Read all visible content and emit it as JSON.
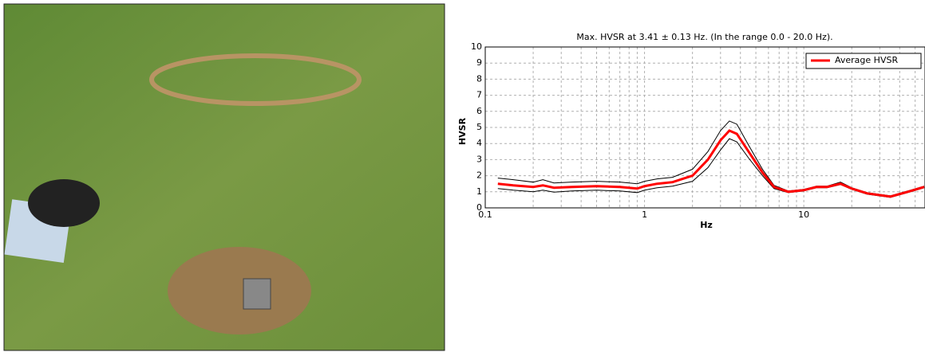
{
  "chart_data": {
    "type": "line",
    "title": "Max. HVSR at 3.41 ± 0.13 Hz. (In the range 0.0 - 20.0 Hz).",
    "x_label": "Hz",
    "y_label": "HVSR",
    "x": [
      0.12,
      0.15,
      0.2,
      0.23,
      0.27,
      0.35,
      0.5,
      0.7,
      0.9,
      1.0,
      1.2,
      1.5,
      2,
      2.5,
      3,
      3.41,
      3.8,
      4.5,
      5.5,
      6.5,
      8,
      10,
      12,
      14,
      17,
      20,
      25,
      35,
      45,
      57
    ],
    "series": [
      {
        "color": "#000000",
        "values": [
          1.85,
          1.75,
          1.6,
          1.75,
          1.55,
          1.6,
          1.65,
          1.6,
          1.5,
          1.65,
          1.8,
          1.9,
          2.4,
          3.5,
          4.8,
          5.4,
          5.2,
          3.9,
          2.4,
          1.4,
          1.05,
          1.15,
          1.35,
          1.35,
          1.6,
          1.25,
          0.95,
          0.75,
          1.05,
          1.35
        ]
      },
      {
        "color": "#000000",
        "values": [
          1.2,
          1.1,
          1.0,
          1.1,
          0.98,
          1.05,
          1.1,
          1.05,
          0.95,
          1.1,
          1.25,
          1.35,
          1.65,
          2.5,
          3.6,
          4.3,
          4.1,
          3.1,
          2.0,
          1.2,
          0.95,
          1.05,
          1.25,
          1.25,
          1.45,
          1.15,
          0.85,
          0.65,
          0.95,
          1.25
        ]
      },
      {
        "name": "Average HVSR",
        "color": "#ff0000",
        "values": [
          1.5,
          1.4,
          1.3,
          1.4,
          1.25,
          1.3,
          1.35,
          1.3,
          1.2,
          1.35,
          1.5,
          1.6,
          2.0,
          3.0,
          4.2,
          4.8,
          4.6,
          3.5,
          2.2,
          1.3,
          1.0,
          1.1,
          1.3,
          1.3,
          1.5,
          1.2,
          0.9,
          0.7,
          1.0,
          1.3
        ]
      }
    ],
    "xlim": [
      0.1,
      57
    ],
    "ylim": [
      0,
      10
    ],
    "xticks": [
      0.1,
      1,
      10
    ],
    "x_minor_ticks": [
      0.2,
      0.3,
      0.4,
      0.5,
      0.6,
      0.7,
      0.8,
      0.9,
      2,
      3,
      4,
      5,
      6,
      7,
      8,
      9,
      20,
      30,
      40,
      50
    ],
    "yticks": [
      0,
      1,
      2,
      3,
      4,
      5,
      6,
      7,
      8,
      9,
      10
    ],
    "x_log": true,
    "grid": true,
    "legend": "upper right"
  }
}
